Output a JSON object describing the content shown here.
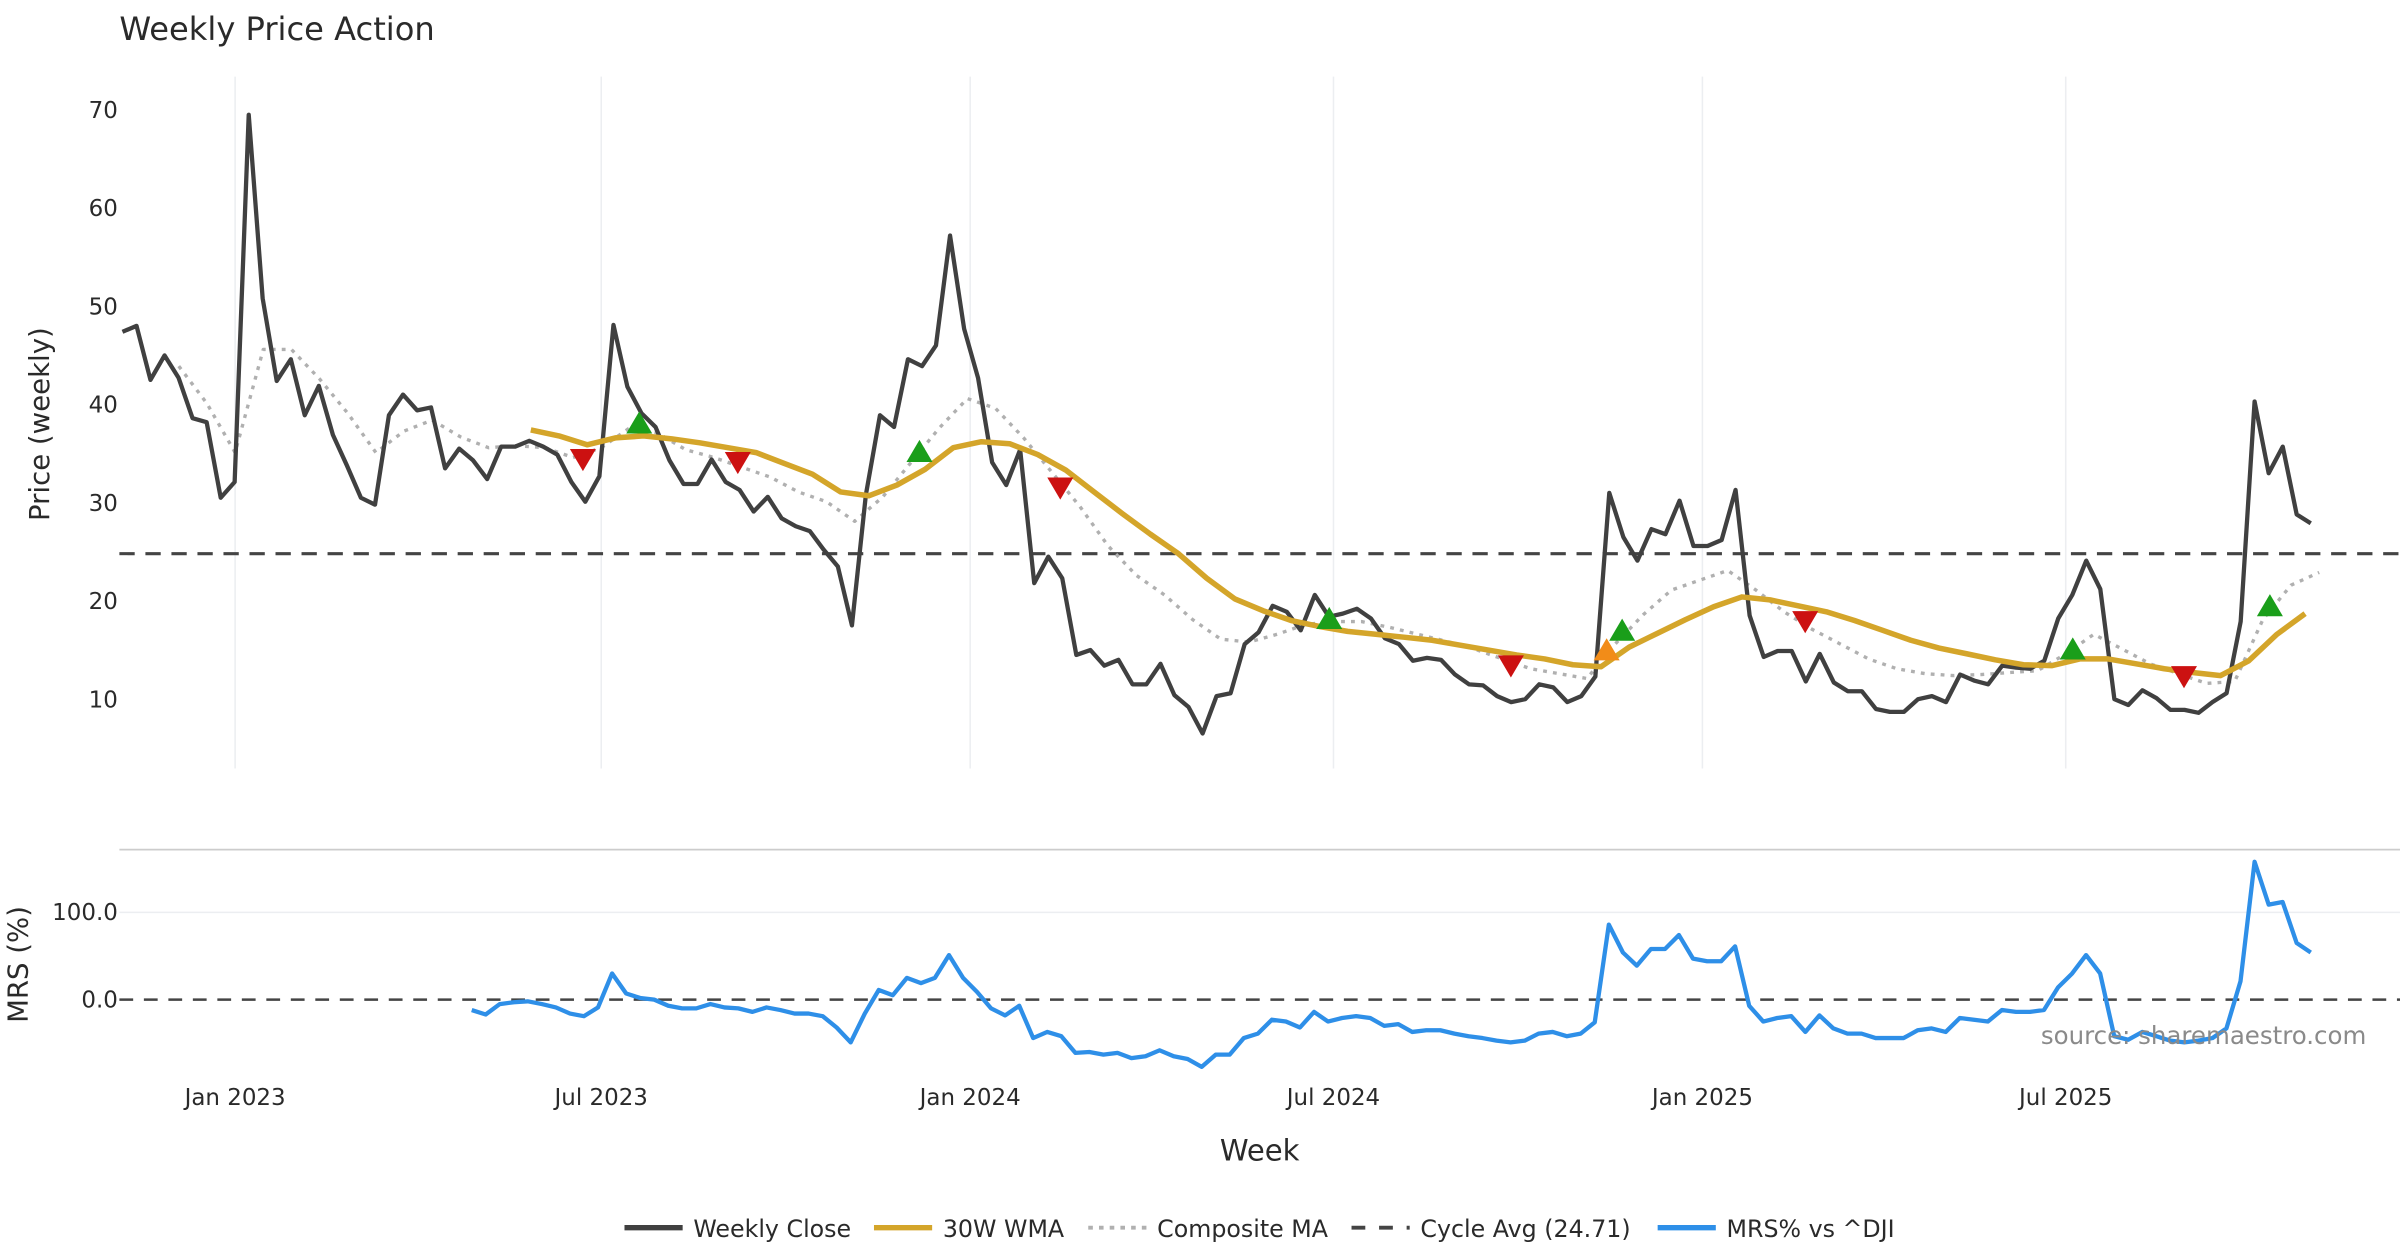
{
  "chart_data": {
    "type": "line",
    "title": "Weekly Price Action",
    "x_label": "Week",
    "x_unit": "weeks since 2022-11-07 (weekly)",
    "x_ticks": [
      {
        "week": 8,
        "label": "Jan 2023"
      },
      {
        "week": 34,
        "label": "Jul 2023"
      },
      {
        "week": 60.2,
        "label": "Jan 2024"
      },
      {
        "week": 86,
        "label": "Jul 2024"
      },
      {
        "week": 112.2,
        "label": "Jan 2025"
      },
      {
        "week": 138,
        "label": "Jul 2025"
      }
    ],
    "x_range": [
      -0.2,
      162
    ],
    "price_panel": {
      "ylabel": "Price (weekly)",
      "ylim": [
        2.9,
        73.3
      ],
      "y_ticks": [
        {
          "v": 10,
          "label": "10"
        },
        {
          "v": 20,
          "label": "20"
        },
        {
          "v": 30,
          "label": "30"
        },
        {
          "v": 40,
          "label": "40"
        },
        {
          "v": 50,
          "label": "50"
        },
        {
          "v": 60,
          "label": "60"
        },
        {
          "v": 70,
          "label": "70"
        }
      ],
      "weekly_close": {
        "name": "Weekly Close",
        "color": "#404040",
        "start_week": 0,
        "end_week": 155.4,
        "values": [
          47.3,
          47.9,
          42.4,
          44.9,
          42.6,
          38.5,
          38.1,
          30.4,
          32,
          69.4,
          50.7,
          42.3,
          44.5,
          38.8,
          41.8,
          36.8,
          33.7,
          30.4,
          29.7,
          38.8,
          40.9,
          39.3,
          39.6,
          33.4,
          35.4,
          34.2,
          32.3,
          35.6,
          35.6,
          36.2,
          35.6,
          34.8,
          32,
          30,
          32.6,
          48,
          41.7,
          39,
          37.6,
          34.2,
          31.8,
          31.8,
          34.3,
          32,
          31.2,
          29,
          30.5,
          28.3,
          27.5,
          27,
          25.1,
          23.4,
          17.4,
          30.7,
          38.8,
          37.6,
          44.5,
          43.8,
          45.9,
          57.1,
          47.6,
          42.6,
          34,
          31.7,
          35.3,
          21.7,
          24.4,
          22.2,
          14.4,
          14.9,
          13.3,
          13.9,
          11.4,
          11.4,
          13.5,
          10.3,
          9.1,
          6.4,
          10.2,
          10.5,
          15.5,
          16.7,
          19.4,
          18.8,
          16.9,
          20.5,
          18.3,
          18.6,
          19.1,
          18.1,
          16.1,
          15.5,
          13.8,
          14.1,
          13.9,
          12.4,
          11.4,
          11.3,
          10.2,
          9.6,
          9.9,
          11.4,
          11.1,
          9.6,
          10.2,
          12.2,
          30.9,
          26.4,
          24,
          27.2,
          26.7,
          30.1,
          25.5,
          25.5,
          26.1,
          31.2,
          18.4,
          14.2,
          14.8,
          14.8,
          11.7,
          14.5,
          11.6,
          10.7,
          10.7,
          8.9,
          8.6,
          8.6,
          9.9,
          10.2,
          9.6,
          12.4,
          11.8,
          11.4,
          13.3,
          13.1,
          13,
          13.8,
          18.1,
          20.5,
          24,
          21.1,
          9.9,
          9.3,
          10.8,
          10,
          8.8,
          8.8,
          8.5,
          9.6,
          10.5,
          17.8,
          40.2,
          32.9,
          35.6,
          28.7,
          27.8
        ]
      },
      "wma_30w": {
        "name": "30W WMA",
        "color": "#D4A52A",
        "start_week": 29,
        "step_weeks": 2,
        "values": [
          37.3,
          36.7,
          35.8,
          36.5,
          36.7,
          36.4,
          36.0,
          35.5,
          35.0,
          33.9,
          32.8,
          31.0,
          30.6,
          31.7,
          33.3,
          35.5,
          36.1,
          35.9,
          34.8,
          33.2,
          31.0,
          28.8,
          26.7,
          24.7,
          22.2,
          20.1,
          18.9,
          17.9,
          17.3,
          16.8,
          16.5,
          16.2,
          15.9,
          15.4,
          14.9,
          14.4,
          14.0,
          13.4,
          13.2,
          15.2,
          16.6,
          18.0,
          19.3,
          20.3,
          20.0,
          19.4,
          18.8,
          17.9,
          16.9,
          15.9,
          15.1,
          14.5,
          13.9,
          13.4,
          13.3,
          14.0,
          14.0,
          13.5,
          13.0,
          12.6,
          12.3,
          13.8,
          16.5,
          18.6
        ]
      },
      "composite_ma": {
        "name": "Composite MA",
        "color": "#B0B0B0",
        "start_week": 4,
        "step_weeks": 2,
        "values": [
          43.8,
          40.0,
          35.0,
          45.5,
          45.5,
          42.5,
          39.0,
          35.0,
          37.2,
          38.3,
          36.6,
          35.5,
          35.7,
          35.5,
          34.5,
          35.5,
          37.5,
          37.0,
          35.3,
          34.5,
          33.5,
          32.5,
          31.0,
          30.0,
          28.0,
          30.5,
          34.0,
          37.5,
          40.5,
          39.5,
          36.5,
          33.0,
          29.5,
          25.5,
          22.5,
          20.5,
          18.0,
          16.0,
          15.7,
          16.5,
          17.5,
          17.8,
          17.8,
          17.2,
          16.5,
          15.8,
          15.0,
          14.0,
          13.0,
          12.5,
          12.0,
          15.5,
          18.5,
          21.0,
          22.0,
          23.0,
          21.0,
          18.8,
          17.0,
          15.5,
          14.0,
          13.0,
          12.5,
          12.3,
          12.4,
          12.6,
          12.8,
          14.5,
          16.5,
          15.0,
          13.5,
          12.5,
          11.5,
          11.7,
          18.0,
          21.5,
          22.8
        ]
      },
      "cycle_avg": {
        "name": "Cycle Avg (24.71)",
        "value": 24.71,
        "color": "#444444"
      },
      "signals": [
        {
          "week": 32.7,
          "value": 34.3,
          "type": "sell",
          "color": "#CC1111"
        },
        {
          "week": 36.7,
          "value": 38.0,
          "type": "buy",
          "color": "#1A9E1A"
        },
        {
          "week": 43.7,
          "value": 34.0,
          "type": "sell",
          "color": "#CC1111"
        },
        {
          "week": 56.6,
          "value": 35.1,
          "type": "buy",
          "color": "#1A9E1A"
        },
        {
          "week": 66.6,
          "value": 31.4,
          "type": "sell",
          "color": "#CC1111"
        },
        {
          "week": 85.7,
          "value": 18.1,
          "type": "buy",
          "color": "#1A9E1A"
        },
        {
          "week": 98.6,
          "value": 13.3,
          "type": "sell",
          "color": "#CC1111"
        },
        {
          "week": 105.4,
          "value": 14.9,
          "type": "buy-alt",
          "color": "#F28C18"
        },
        {
          "week": 106.5,
          "value": 16.9,
          "type": "buy",
          "color": "#1A9E1A"
        },
        {
          "week": 119.5,
          "value": 17.8,
          "type": "sell",
          "color": "#CC1111"
        },
        {
          "week": 138.5,
          "value": 15.0,
          "type": "buy",
          "color": "#1A9E1A"
        },
        {
          "week": 146.4,
          "value": 12.2,
          "type": "sell",
          "color": "#CC1111"
        },
        {
          "week": 152.5,
          "value": 19.4,
          "type": "buy",
          "color": "#1A9E1A"
        }
      ]
    },
    "mrs_panel": {
      "ylabel": "MRS (%)",
      "ylim": [
        -82,
        172
      ],
      "y_ticks": [
        {
          "v": 0,
          "label": "0.0"
        },
        {
          "v": 100,
          "label": "100.0"
        }
      ],
      "mrs": {
        "name": "MRS% vs ^DJI",
        "color": "#2E8FE8",
        "start_week": 24.8,
        "end_week": 155.4,
        "values": [
          -12,
          -17,
          -5,
          -3,
          -2,
          -5,
          -9,
          -16,
          -19,
          -9,
          30,
          7,
          2,
          0,
          -7,
          -10,
          -10,
          -5,
          -9,
          -10,
          -14,
          -9,
          -12,
          -16,
          -16,
          -19,
          -32,
          -49,
          -16,
          11,
          5,
          25,
          19,
          25,
          51,
          25,
          9,
          -10,
          -18,
          -7,
          -44,
          -37,
          -42,
          -61,
          -60,
          -63,
          -61,
          -67,
          -65,
          -58,
          -65,
          -68,
          -77,
          -63,
          -63,
          -44,
          -39,
          -23,
          -25,
          -32,
          -14,
          -25,
          -21,
          -19,
          -21,
          -30,
          -28,
          -37,
          -35,
          -35,
          -39,
          -42,
          -44,
          -47,
          -49,
          -47,
          -39,
          -37,
          -42,
          -39,
          -26,
          86,
          54,
          39,
          58,
          58,
          74,
          47,
          44,
          44,
          61,
          -7,
          -25,
          -21,
          -19,
          -37,
          -18,
          -33,
          -39,
          -39,
          -44,
          -44,
          -44,
          -35,
          -33,
          -37,
          -21,
          -23,
          -25,
          -12,
          -14,
          -14,
          -12,
          14,
          30,
          51,
          30,
          -42,
          -46,
          -37,
          -42,
          -47,
          -49,
          -47,
          -44,
          -33,
          21,
          158,
          109,
          112,
          65,
          54
        ]
      }
    },
    "legend": {
      "placement": "bottom-center",
      "items": [
        {
          "label": "Weekly Close",
          "color": "#404040",
          "style": "solid"
        },
        {
          "label": "30W WMA",
          "color": "#D4A52A",
          "style": "solid"
        },
        {
          "label": "Composite MA",
          "color": "#B0B0B0",
          "style": "dotted"
        },
        {
          "label": "Cycle Avg (24.71)",
          "color": "#444444",
          "style": "dashed"
        },
        {
          "label": "MRS% vs ^DJI",
          "color": "#2E8FE8",
          "style": "solid"
        }
      ]
    },
    "source": "source: sharemaestro.com"
  }
}
